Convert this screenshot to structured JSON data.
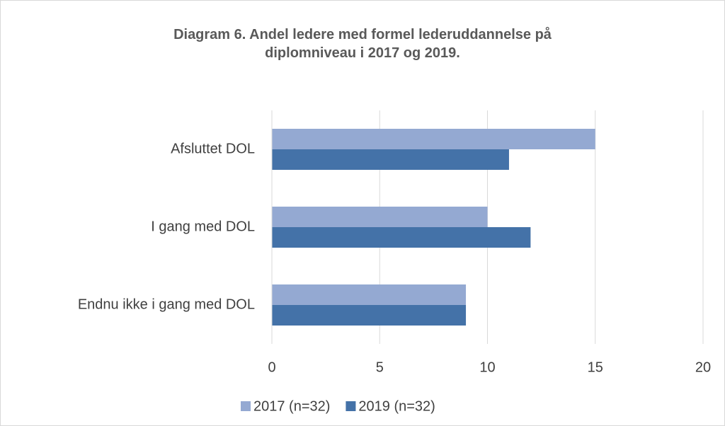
{
  "chart_data": {
    "type": "hbar",
    "title": "Diagram 6. Andel ledere med formel lederuddannelse på diplomniveau i 2017 og 2019.",
    "categories": [
      "Afsluttet DOL",
      "I gang med DOL",
      "Endnu ikke i gang med DOL"
    ],
    "series": [
      {
        "name": "2017 (n=32)",
        "color": "#94a9d2",
        "values": [
          15,
          10,
          9
        ]
      },
      {
        "name": "2019 (n=32)",
        "color": "#4472a8",
        "values": [
          11,
          12,
          9
        ]
      }
    ],
    "xlim": [
      0,
      20
    ],
    "xticks": [
      0,
      5,
      10,
      15,
      20
    ],
    "grid": true,
    "legend": "bottom"
  }
}
